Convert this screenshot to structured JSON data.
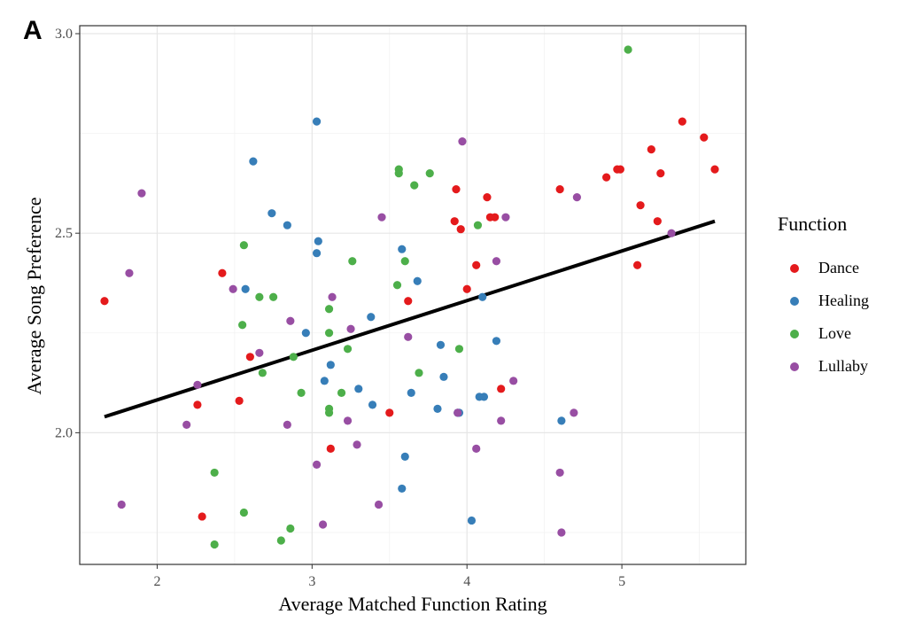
{
  "panel_label": "A",
  "chart_data": {
    "type": "scatter",
    "xlabel": "Average Matched Function Rating",
    "ylabel": "Average Song Preference",
    "xlim": [
      1.5,
      5.8
    ],
    "ylim": [
      1.67,
      3.02
    ],
    "x_ticks": [
      "2",
      "3",
      "4",
      "5"
    ],
    "x_tick_values": [
      2,
      3,
      4,
      5
    ],
    "y_ticks": [
      "2.0",
      "2.5",
      "3.0"
    ],
    "y_tick_values": [
      2.0,
      2.5,
      3.0
    ],
    "grid": true,
    "legend_position": "right",
    "legend_title": "Function",
    "trend_line": {
      "x": [
        1.66,
        5.6
      ],
      "y": [
        2.04,
        2.53
      ]
    },
    "series": [
      {
        "name": "Dance",
        "color": "#e41a1c",
        "points": [
          [
            1.66,
            2.33
          ],
          [
            2.29,
            1.79
          ],
          [
            2.26,
            2.07
          ],
          [
            2.42,
            2.4
          ],
          [
            2.53,
            2.08
          ],
          [
            2.6,
            2.19
          ],
          [
            3.12,
            1.96
          ],
          [
            3.5,
            2.05
          ],
          [
            3.62,
            2.33
          ],
          [
            3.92,
            2.53
          ],
          [
            3.93,
            2.61
          ],
          [
            3.96,
            2.51
          ],
          [
            4.0,
            2.36
          ],
          [
            4.06,
            2.42
          ],
          [
            4.13,
            2.59
          ],
          [
            4.15,
            2.54
          ],
          [
            4.18,
            2.54
          ],
          [
            4.22,
            2.11
          ],
          [
            4.6,
            2.61
          ],
          [
            4.9,
            2.64
          ],
          [
            4.97,
            2.66
          ],
          [
            4.99,
            2.66
          ],
          [
            5.1,
            2.42
          ],
          [
            5.12,
            2.57
          ],
          [
            5.19,
            2.71
          ],
          [
            5.23,
            2.53
          ],
          [
            5.25,
            2.65
          ],
          [
            5.39,
            2.78
          ],
          [
            5.53,
            2.74
          ],
          [
            5.6,
            2.66
          ]
        ]
      },
      {
        "name": "Healing",
        "color": "#377eb8",
        "points": [
          [
            2.57,
            2.36
          ],
          [
            2.62,
            2.68
          ],
          [
            2.74,
            2.55
          ],
          [
            2.84,
            2.52
          ],
          [
            2.96,
            2.25
          ],
          [
            3.03,
            2.45
          ],
          [
            3.04,
            2.48
          ],
          [
            3.03,
            2.78
          ],
          [
            3.08,
            2.13
          ],
          [
            3.12,
            2.17
          ],
          [
            3.3,
            2.11
          ],
          [
            3.38,
            2.29
          ],
          [
            3.39,
            2.07
          ],
          [
            3.58,
            1.86
          ],
          [
            3.58,
            2.46
          ],
          [
            3.6,
            1.94
          ],
          [
            3.64,
            2.1
          ],
          [
            3.68,
            2.38
          ],
          [
            3.81,
            2.06
          ],
          [
            3.83,
            2.22
          ],
          [
            3.85,
            2.14
          ],
          [
            3.94,
            2.05
          ],
          [
            3.95,
            2.05
          ],
          [
            4.03,
            1.78
          ],
          [
            4.08,
            2.09
          ],
          [
            4.1,
            2.34
          ],
          [
            4.11,
            2.09
          ],
          [
            4.19,
            2.23
          ],
          [
            4.61,
            2.03
          ]
        ]
      },
      {
        "name": "Love",
        "color": "#4daf4a",
        "points": [
          [
            2.37,
            1.72
          ],
          [
            2.37,
            1.9
          ],
          [
            2.55,
            2.27
          ],
          [
            2.56,
            1.8
          ],
          [
            2.56,
            2.47
          ],
          [
            2.66,
            2.34
          ],
          [
            2.68,
            2.15
          ],
          [
            2.75,
            2.34
          ],
          [
            2.8,
            1.73
          ],
          [
            2.86,
            1.76
          ],
          [
            2.88,
            2.19
          ],
          [
            2.93,
            2.1
          ],
          [
            3.11,
            2.06
          ],
          [
            3.11,
            2.05
          ],
          [
            3.11,
            2.25
          ],
          [
            3.11,
            2.31
          ],
          [
            3.19,
            2.1
          ],
          [
            3.23,
            2.21
          ],
          [
            3.26,
            2.43
          ],
          [
            3.55,
            2.37
          ],
          [
            3.56,
            2.66
          ],
          [
            3.56,
            2.65
          ],
          [
            3.6,
            2.43
          ],
          [
            3.66,
            2.62
          ],
          [
            3.69,
            2.15
          ],
          [
            3.76,
            2.65
          ],
          [
            3.95,
            2.21
          ],
          [
            4.07,
            2.52
          ],
          [
            5.04,
            2.96
          ]
        ]
      },
      {
        "name": "Lullaby",
        "color": "#984ea3",
        "points": [
          [
            1.77,
            1.82
          ],
          [
            1.82,
            2.4
          ],
          [
            1.9,
            2.6
          ],
          [
            2.19,
            2.02
          ],
          [
            2.26,
            2.12
          ],
          [
            2.49,
            2.36
          ],
          [
            2.66,
            2.2
          ],
          [
            2.84,
            2.02
          ],
          [
            2.86,
            2.28
          ],
          [
            3.03,
            1.92
          ],
          [
            3.07,
            1.77
          ],
          [
            3.13,
            2.34
          ],
          [
            3.23,
            2.03
          ],
          [
            3.25,
            2.26
          ],
          [
            3.29,
            1.97
          ],
          [
            3.43,
            1.82
          ],
          [
            3.45,
            2.54
          ],
          [
            3.62,
            2.24
          ],
          [
            3.94,
            2.05
          ],
          [
            3.97,
            2.73
          ],
          [
            4.06,
            1.96
          ],
          [
            4.19,
            2.43
          ],
          [
            4.22,
            2.03
          ],
          [
            4.25,
            2.54
          ],
          [
            4.3,
            2.13
          ],
          [
            4.6,
            1.9
          ],
          [
            4.61,
            1.75
          ],
          [
            4.69,
            2.05
          ],
          [
            4.71,
            2.59
          ],
          [
            5.32,
            2.5
          ]
        ]
      }
    ]
  }
}
